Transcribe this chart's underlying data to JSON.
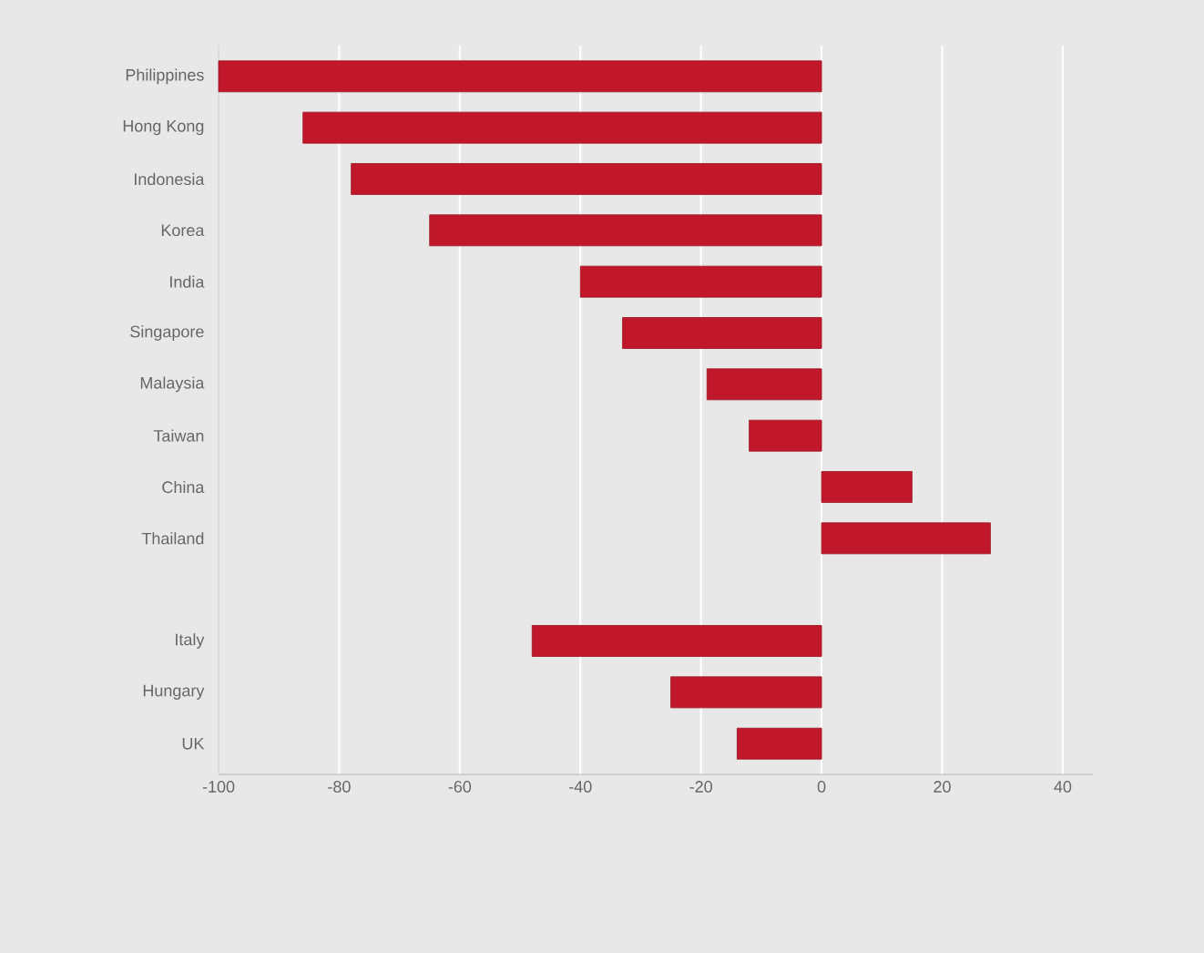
{
  "chart_data": {
    "type": "bar",
    "orientation": "horizontal",
    "categories": [
      "Philippines",
      "Hong Kong",
      "Indonesia",
      "Korea",
      "India",
      "Singapore",
      "Malaysia",
      "Taiwan",
      "China",
      "Thailand",
      null,
      "Italy",
      "Hungary",
      "UK"
    ],
    "values": [
      -100,
      -86,
      -78,
      -65,
      -40,
      -33,
      -19,
      -12,
      15,
      28,
      null,
      -48,
      -25,
      -14
    ],
    "color": "#c0182a",
    "xlim": [
      -100,
      45
    ],
    "xticks": [
      -100,
      -80,
      -60,
      -40,
      -20,
      0,
      20,
      40
    ],
    "grid": "x"
  }
}
